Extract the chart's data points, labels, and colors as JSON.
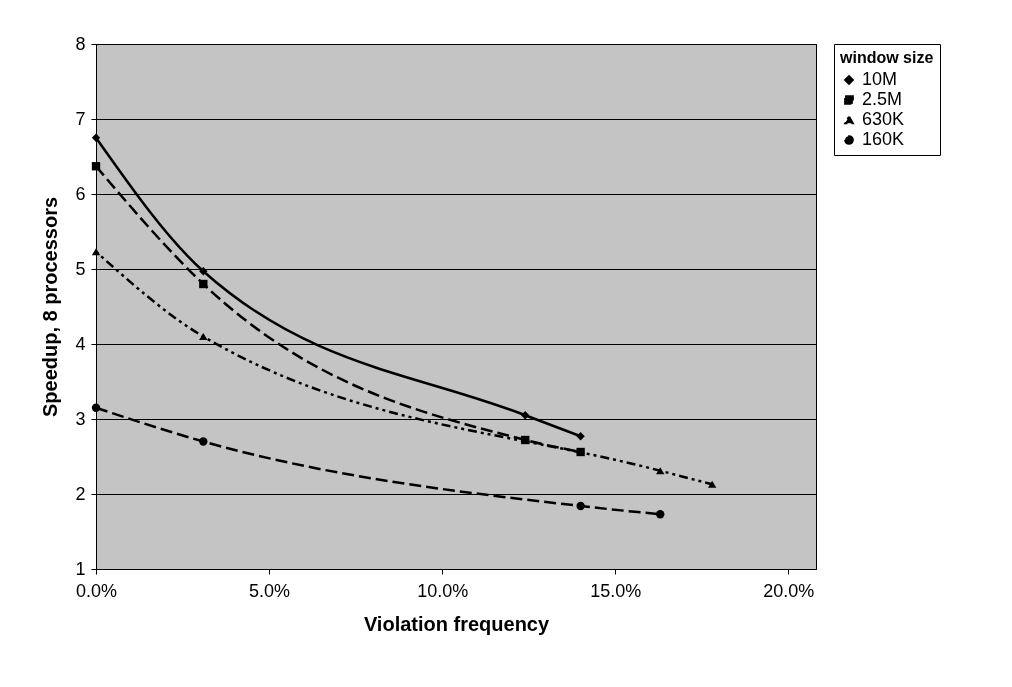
{
  "chart_data": {
    "type": "line",
    "xlabel": "Violation frequency",
    "ylabel": "Speedup, 8 processors",
    "legend_title": "window size",
    "xlim": [
      0,
      20.8
    ],
    "xticks": [
      {
        "value": 0,
        "label": "0.0%"
      },
      {
        "value": 5,
        "label": "5.0%"
      },
      {
        "value": 10,
        "label": "10.0%"
      },
      {
        "value": 15,
        "label": "15.0%"
      },
      {
        "value": 20,
        "label": "20.0%"
      }
    ],
    "ylim": [
      1,
      8
    ],
    "yticks": [
      1,
      2,
      3,
      4,
      5,
      6,
      7,
      8
    ],
    "grid": "y",
    "legend": "right",
    "series": [
      {
        "name": "10M",
        "color": "#000000",
        "marker": "diamond",
        "line_style": "solid",
        "x": [
          0,
          3.1,
          12.4,
          14
        ],
        "values": [
          6.75,
          4.97,
          3.05,
          2.77
        ]
      },
      {
        "name": "2.5M",
        "color": "#000000",
        "marker": "square",
        "line_style": "dashed",
        "x": [
          0,
          3.1,
          12.4,
          14
        ],
        "values": [
          6.37,
          4.8,
          2.72,
          2.56
        ]
      },
      {
        "name": "630K",
        "color": "#000000",
        "marker": "triangle",
        "line_style": "dotted",
        "x": [
          0,
          3.1,
          16.3,
          17.8
        ],
        "values": [
          5.23,
          4.1,
          2.31,
          2.13
        ]
      },
      {
        "name": "160K",
        "color": "#000000",
        "marker": "circle",
        "line_style": "dashed",
        "x": [
          0,
          3.1,
          14,
          16.3
        ],
        "values": [
          3.15,
          2.7,
          1.84,
          1.73
        ]
      }
    ]
  }
}
